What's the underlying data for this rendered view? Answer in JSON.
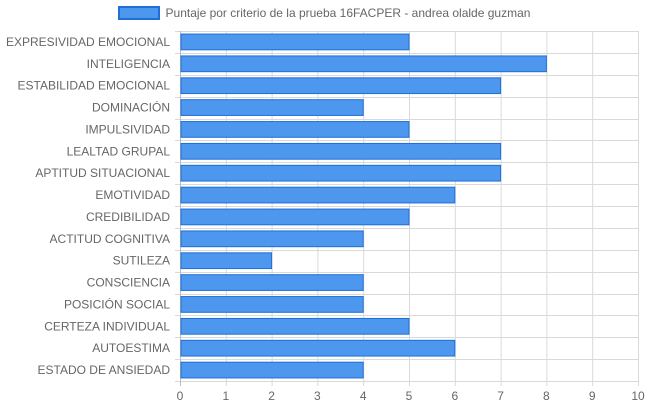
{
  "chart_data": {
    "type": "bar",
    "orientation": "horizontal",
    "categories": [
      "EXPRESIVIDAD EMOCIONAL",
      "INTELIGENCIA",
      "ESTABILIDAD EMOCIONAL",
      "DOMINACIÓN",
      "IMPULSIVIDAD",
      "LEALTAD GRUPAL",
      "APTITUD SITUACIONAL",
      "EMOTIVIDAD",
      "CREDIBILIDAD",
      "ACTITUD COGNITIVA",
      "SUTILEZA",
      "CONSCIENCIA",
      "POSICIÓN SOCIAL",
      "CERTEZA INDIVIDUAL",
      "AUTOESTIMA",
      "ESTADO DE ANSIEDAD"
    ],
    "series": [
      {
        "name": "Puntaje por criterio de la prueba 16FACPER - andrea olalde guzman",
        "values": [
          5,
          8,
          7,
          4,
          5,
          7,
          7,
          6,
          5,
          4,
          2,
          4,
          4,
          5,
          6,
          4
        ]
      }
    ],
    "xlim": [
      0,
      10
    ],
    "xticks": [
      "0",
      "1",
      "2",
      "3",
      "4",
      "5",
      "6",
      "7",
      "8",
      "9",
      "10"
    ],
    "grid": true,
    "legend_position": "top-center",
    "colors": {
      "bar_fill": "#4e97ef",
      "bar_border": "#1f6fd6",
      "grid": "#d9d9d9",
      "text": "#666666"
    }
  }
}
